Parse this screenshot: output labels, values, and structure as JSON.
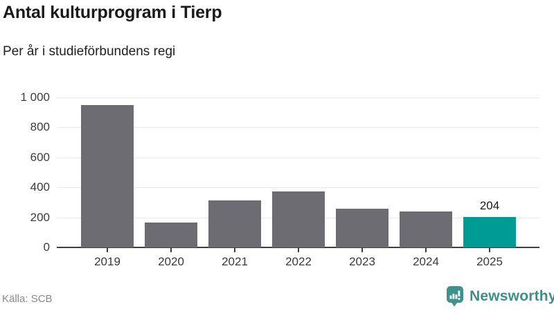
{
  "header": {
    "title": "Antal kulturprogram i Tierp",
    "subtitle": "Per år i studieförbundens regi"
  },
  "chart_data": {
    "type": "bar",
    "title": "Antal kulturprogram i Tierp",
    "subtitle": "Per år i studieförbundens regi",
    "categories": [
      "2019",
      "2020",
      "2021",
      "2022",
      "2023",
      "2024",
      "2025"
    ],
    "values": [
      950,
      165,
      315,
      375,
      260,
      240,
      204
    ],
    "highlight_index": 6,
    "value_labels": {
      "2025": "204"
    },
    "xlabel": "",
    "ylabel": "",
    "ylim": [
      0,
      1000
    ],
    "yticks": [
      0,
      200,
      400,
      600,
      800,
      1000
    ],
    "ytick_labels": [
      "0",
      "200",
      "400",
      "600",
      "800",
      "1 000"
    ],
    "grid": "horizontal",
    "legend": "none",
    "bar_color": "#6c6c72",
    "highlight_color": "#009b94",
    "gridline_color": "#e9e9e9",
    "axis_color": "#3f3f44"
  },
  "footer": {
    "source": "Källa: SCB",
    "brand": "Newsworthy",
    "brand_color": "#3d8f8b"
  },
  "icons": {
    "logo": "newsworthy-speech-bubble-chart-icon"
  }
}
